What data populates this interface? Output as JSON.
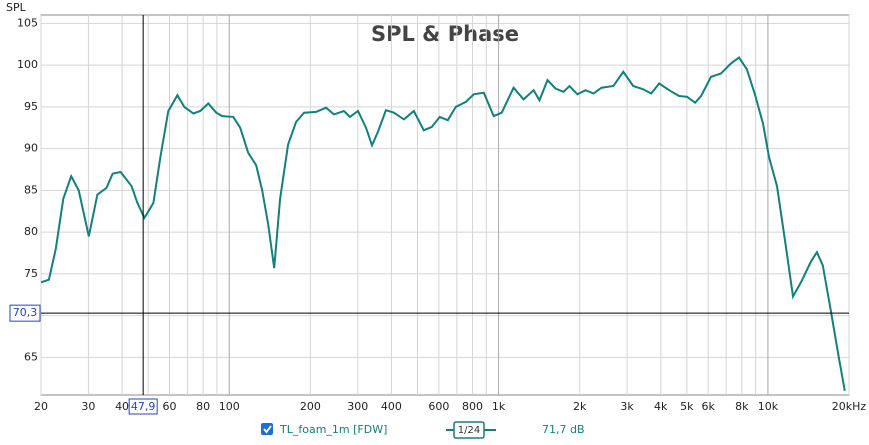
{
  "chart_data": {
    "type": "line",
    "title": "SPL & Phase",
    "y_label": "SPL",
    "log_x": true,
    "grid": true,
    "xlim": [
      20,
      20000
    ],
    "ylim": [
      60.5,
      106
    ],
    "xticks": [
      20,
      30,
      40,
      60,
      80,
      100,
      200,
      300,
      400,
      600,
      800,
      {
        "value": 1000,
        "label": "1k"
      },
      {
        "value": 2000,
        "label": "2k"
      },
      {
        "value": 3000,
        "label": "3k"
      },
      {
        "value": 4000,
        "label": "4k"
      },
      {
        "value": 5000,
        "label": "5k"
      },
      {
        "value": 6000,
        "label": "6k"
      },
      {
        "value": 8000,
        "label": "8k"
      },
      {
        "value": 10000,
        "label": "10k"
      },
      {
        "value": 20000,
        "label": "20kHz"
      }
    ],
    "minor_xticks": [
      50,
      70,
      90,
      500,
      700,
      900,
      7000,
      9000
    ],
    "major_xticks": [
      100,
      1000,
      10000
    ],
    "yticks": [
      65,
      70,
      75,
      80,
      85,
      90,
      95,
      100,
      105
    ],
    "cursor": {
      "x": {
        "value": 47.9,
        "label": "47,9"
      },
      "y": {
        "value": 70.3,
        "label": "70,3"
      }
    },
    "series": [
      {
        "name": "TL_foam_1m [FDW]",
        "color": "#12807c",
        "smoothing": "1/24",
        "readout": "71,7 dB",
        "x": [
          20,
          21.4,
          22.7,
          24.2,
          25.9,
          27.6,
          30.1,
          32.4,
          35,
          36.9,
          39.5,
          43.4,
          45.6,
          48.4,
          52.3,
          55.5,
          59.4,
          64.2,
          68.1,
          73.6,
          78.1,
          83.6,
          89.5,
          94.2,
          103.5,
          109.8,
          117.6,
          125.9,
          132.5,
          139.4,
          146.8,
          154.5,
          165.4,
          177.1,
          189.6,
          210.1,
          228.6,
          244.8,
          266.5,
          280.6,
          300.6,
          322,
          338.7,
          356.4,
          381.7,
          408.6,
          445,
          484.5,
          527.5,
          564.9,
          604.9,
          647.8,
          693.7,
          755.4,
          809,
          880.9,
          959.2,
          1027,
          1137,
          1238,
          1349,
          1419,
          1519,
          1627,
          1742,
          1833,
          1962,
          2102,
          2251,
          2410,
          2668,
          2904,
          3162,
          3442,
          3687,
          3948,
          4299,
          4681,
          5012,
          5367,
          5647,
          6148,
          6695,
          7290,
          7806,
          8358,
          8950,
          9584,
          10090,
          10805,
          11570,
          12389,
          13266,
          14447,
          15199,
          15991,
          17124,
          18337,
          19288
        ],
        "values": [
          74,
          74.3,
          78,
          84,
          86.7,
          85,
          79.5,
          84.5,
          85.3,
          87,
          87.2,
          85.5,
          83.5,
          81.7,
          83.5,
          89,
          94.5,
          96.4,
          95,
          94.2,
          94.5,
          95.4,
          94.3,
          93.9,
          93.8,
          92.5,
          89.5,
          88,
          85,
          81,
          75.7,
          84,
          90.5,
          93.2,
          94.3,
          94.4,
          94.9,
          94.1,
          94.5,
          93.8,
          94.5,
          92.5,
          90.4,
          92,
          94.6,
          94.3,
          93.5,
          94.5,
          92.2,
          92.6,
          93.8,
          93.4,
          95,
          95.6,
          96.5,
          96.7,
          93.9,
          94.3,
          97.3,
          95.9,
          97,
          95.8,
          98.2,
          97.2,
          96.8,
          97.5,
          96.5,
          97,
          96.6,
          97.3,
          97.5,
          99.2,
          97.5,
          97.1,
          96.6,
          97.8,
          97,
          96.3,
          96.2,
          95.5,
          96.3,
          98.6,
          99,
          100.2,
          100.9,
          99.5,
          96.5,
          93,
          89,
          85.5,
          79,
          72.3,
          74,
          76.5,
          77.6,
          76,
          70.6,
          65,
          61
        ]
      }
    ]
  }
}
